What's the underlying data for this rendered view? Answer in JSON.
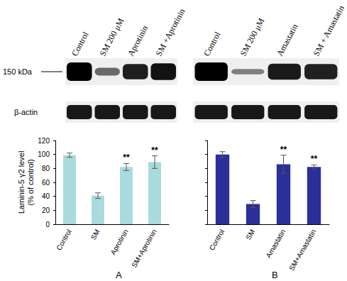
{
  "chart_data": [
    {
      "type": "bar",
      "title": "A",
      "categories": [
        "Control",
        "SM",
        "Aprotinin",
        "SM+Aprotinin"
      ],
      "values": [
        99,
        41,
        82,
        89
      ],
      "errors": [
        3,
        4,
        5,
        9
      ],
      "significance": [
        null,
        null,
        "**",
        "**"
      ],
      "color": "#a9dadd",
      "ylabel": "Laminin-5 γ2 level\n(% of control)",
      "ylim": [
        0,
        120
      ],
      "yticks": [
        0,
        20,
        40,
        60,
        80,
        100,
        120
      ],
      "grid": false,
      "blot": {
        "lanes": [
          "Control",
          "SM 200 μM",
          "Aprotinin",
          "SM +Aprotinin"
        ],
        "row_labels": [
          "150 kDa",
          "β-actin"
        ]
      }
    },
    {
      "type": "bar",
      "title": "B",
      "categories": [
        "Control",
        "SM",
        "Amastatin",
        "SM+Amastatin"
      ],
      "values": [
        100,
        29,
        86,
        82
      ],
      "errors": [
        4,
        5,
        13,
        3
      ],
      "significance": [
        null,
        null,
        "**",
        "**"
      ],
      "color": "#2b2f9a",
      "ylim": [
        0,
        120
      ],
      "yticks": [
        0,
        20,
        40,
        60,
        80,
        100,
        120
      ],
      "grid": false,
      "tick_labels": "x",
      "blot": {
        "lanes": [
          "Control",
          "SM 200 μM",
          "Amastatin",
          "SM + Amastatin"
        ]
      }
    }
  ]
}
